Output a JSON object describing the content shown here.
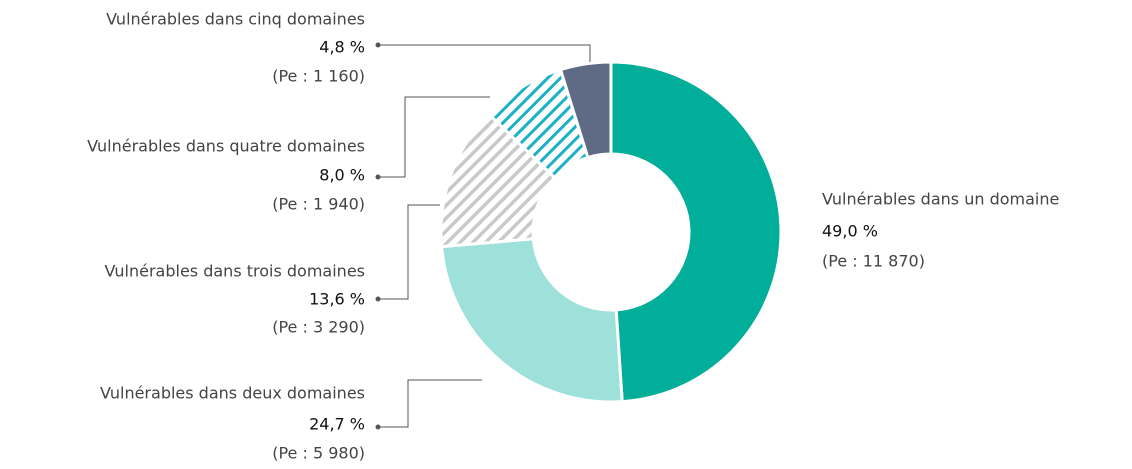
{
  "chart_data": {
    "type": "donut",
    "categories": [
      "Vulnérables dans un domaine",
      "Vulnérables dans deux domaines",
      "Vulnérables dans trois domaines",
      "Vulnérables dans quatre domaines",
      "Vulnérables dans cinq domaines"
    ],
    "values": [
      49.0,
      24.7,
      13.6,
      8.0,
      4.8
    ],
    "value_labels": [
      "49,0 %",
      "24,7 %",
      "13,6 %",
      "8,0 %",
      "4,8 %"
    ],
    "annotations": [
      "(Pe : 11 870)",
      "(Pe : 5 980)",
      "(Pe : 3 290)",
      "(Pe : 1 940)",
      "(Pe : 1 160)"
    ],
    "colors": [
      "#00ae9a",
      "#9ee0da",
      "#c9c9c9",
      "#1ab0c8",
      "#5f6b85"
    ],
    "hatched": [
      false,
      false,
      true,
      true,
      false
    ]
  }
}
